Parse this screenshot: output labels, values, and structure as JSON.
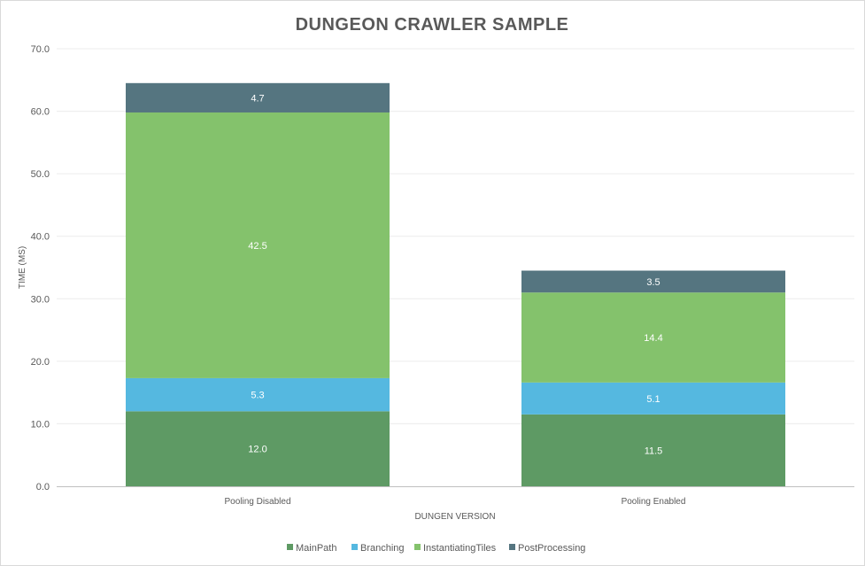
{
  "chart_data": {
    "type": "bar",
    "stacked": true,
    "title": "DUNGEON CRAWLER SAMPLE",
    "xlabel": "DUNGEN VERSION",
    "ylabel": "TIME (MS)",
    "ylim": [
      0,
      70
    ],
    "yticks": [
      "0.0",
      "10.0",
      "20.0",
      "30.0",
      "40.0",
      "50.0",
      "60.0",
      "70.0"
    ],
    "grid": true,
    "legend": "bottom",
    "categories": [
      "Pooling Disabled",
      "Pooling Enabled"
    ],
    "series": [
      {
        "name": "MainPath",
        "values": [
          12.0,
          11.5
        ],
        "color": "#5e9a64"
      },
      {
        "name": "Branching",
        "values": [
          5.3,
          5.1
        ],
        "color": "#55b8e0"
      },
      {
        "name": "InstantiatingTiles",
        "values": [
          42.5,
          14.4
        ],
        "color": "#84c26c"
      },
      {
        "name": "PostProcessing",
        "values": [
          4.7,
          3.5
        ],
        "color": "#557580"
      }
    ]
  }
}
